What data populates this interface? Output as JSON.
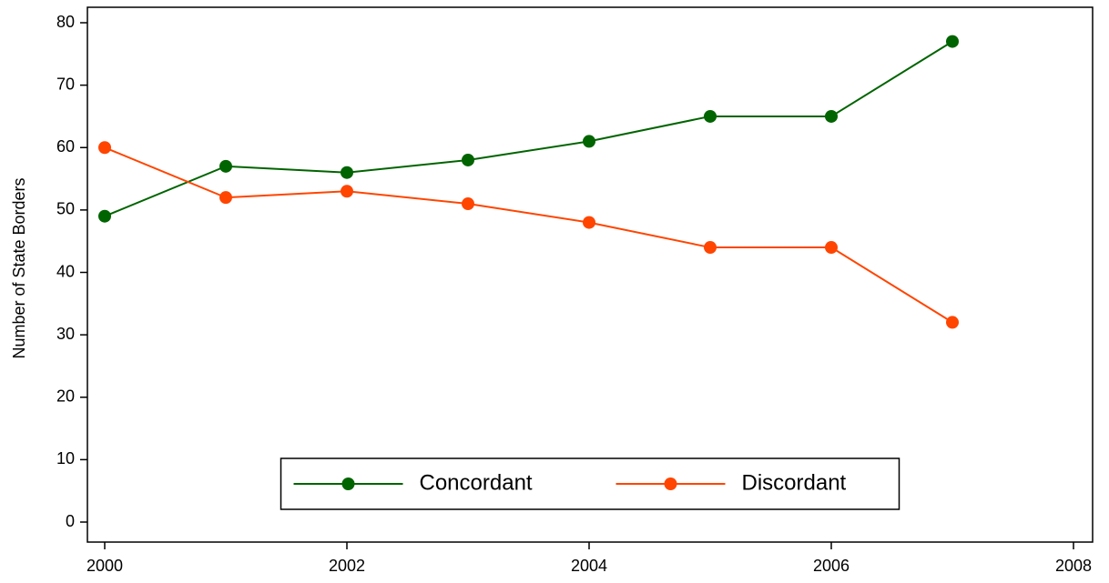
{
  "chart_data": {
    "type": "line",
    "ylabel": "Number of State Borders",
    "x": [
      2000,
      2001,
      2002,
      2003,
      2004,
      2005,
      2006,
      2007
    ],
    "series": [
      {
        "name": "Concordant",
        "color": "#006400",
        "values": [
          49,
          57,
          56,
          58,
          61,
          65,
          65,
          77
        ]
      },
      {
        "name": "Discordant",
        "color": "#ff4500",
        "values": [
          60,
          52,
          53,
          51,
          48,
          44,
          44,
          32
        ]
      }
    ],
    "xlim": [
      2000,
      2008
    ],
    "xticks": [
      2000,
      2002,
      2004,
      2006,
      2008
    ],
    "ylim": [
      0,
      80
    ],
    "yticks": [
      0,
      10,
      20,
      30,
      40,
      50,
      60,
      70,
      80
    ],
    "grid": false,
    "legend": "bottom"
  }
}
